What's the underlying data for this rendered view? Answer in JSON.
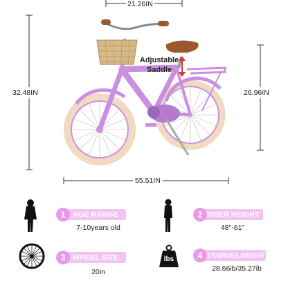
{
  "dimensions": {
    "handlebar_width": "21.26IN",
    "overall_height": "32.48IN",
    "seat_height": "26.96IN",
    "length": "55.51IN"
  },
  "saddle_note": {
    "line1": "Adjustable",
    "line2": "Saddle"
  },
  "specs": [
    {
      "number": "1",
      "title": "AGE RANGE",
      "value": "7-10years old",
      "icon": "child-silhouette-icon"
    },
    {
      "number": "2",
      "title": "RIDER HEIGHT",
      "value": "48\"-61\"",
      "icon": "rider-silhouette-icon"
    },
    {
      "number": "3",
      "title": "WHEEL SIZE",
      "value": "20in",
      "icon": "wheel-icon"
    },
    {
      "number": "4",
      "title": "NET/GROSS WEIGHT",
      "value": "28.66ib/35.27ib",
      "icon": "weight-icon",
      "icon_text": "lbs"
    }
  ],
  "colors": {
    "frame": "#c98fe0",
    "tire": "#f2d9c2",
    "accent_pink": "#e89ae6",
    "pill_pink": "#f3c4f1",
    "saddle": "#9b5a2e",
    "basket": "#d8b98a"
  }
}
